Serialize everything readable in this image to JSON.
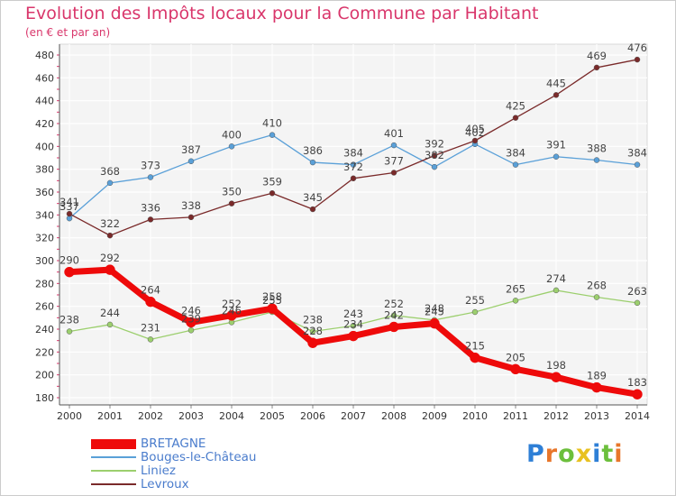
{
  "title": "Evolution des Impôts locaux pour la Commune par Habitant",
  "subtitle": "(en € et par an)",
  "brand": {
    "letters": [
      {
        "ch": "P",
        "color": "#2e7fd6"
      },
      {
        "ch": "r",
        "color": "#e8762a"
      },
      {
        "ch": "o",
        "color": "#6cbf3c"
      },
      {
        "ch": "x",
        "color": "#e8c120"
      },
      {
        "ch": "i",
        "color": "#2e7fd6"
      },
      {
        "ch": "t",
        "color": "#6cbf3c"
      },
      {
        "ch": "i",
        "color": "#e8762a"
      }
    ]
  },
  "chart_data": {
    "type": "line",
    "title": "Evolution des Impôts locaux pour la Commune par Habitant",
    "subtitle": "(en € et par an)",
    "xlabel": "",
    "ylabel": "",
    "x": [
      "2000",
      "2001",
      "2002",
      "2003",
      "2004",
      "2005",
      "2006",
      "2007",
      "2008",
      "2009",
      "2010",
      "2011",
      "2012",
      "2013",
      "2014"
    ],
    "ylim": [
      180,
      480
    ],
    "yticks": [
      180,
      200,
      220,
      240,
      260,
      280,
      300,
      320,
      340,
      360,
      380,
      400,
      420,
      440,
      460,
      480
    ],
    "grid": true,
    "legend_position": "bottom-left",
    "series": [
      {
        "name": "BRETAGNE",
        "color": "#ee0a0a",
        "values": [
          290,
          292,
          264,
          246,
          252,
          258,
          228,
          234,
          242,
          245,
          215,
          205,
          198,
          189,
          183
        ]
      },
      {
        "name": "Bouges-le-Château",
        "color": "#5aa0d8",
        "values": [
          337,
          368,
          373,
          387,
          400,
          410,
          386,
          384,
          401,
          382,
          402,
          384,
          391,
          388,
          384
        ]
      },
      {
        "name": "Liniez",
        "color": "#9ccf6e",
        "values": [
          238,
          244,
          231,
          239,
          246,
          255,
          238,
          243,
          252,
          248,
          255,
          265,
          274,
          268,
          263
        ]
      },
      {
        "name": "Levroux",
        "color": "#7a2a2a",
        "values": [
          341,
          322,
          336,
          338,
          350,
          359,
          345,
          372,
          377,
          392,
          405,
          425,
          445,
          469,
          476
        ]
      }
    ]
  }
}
